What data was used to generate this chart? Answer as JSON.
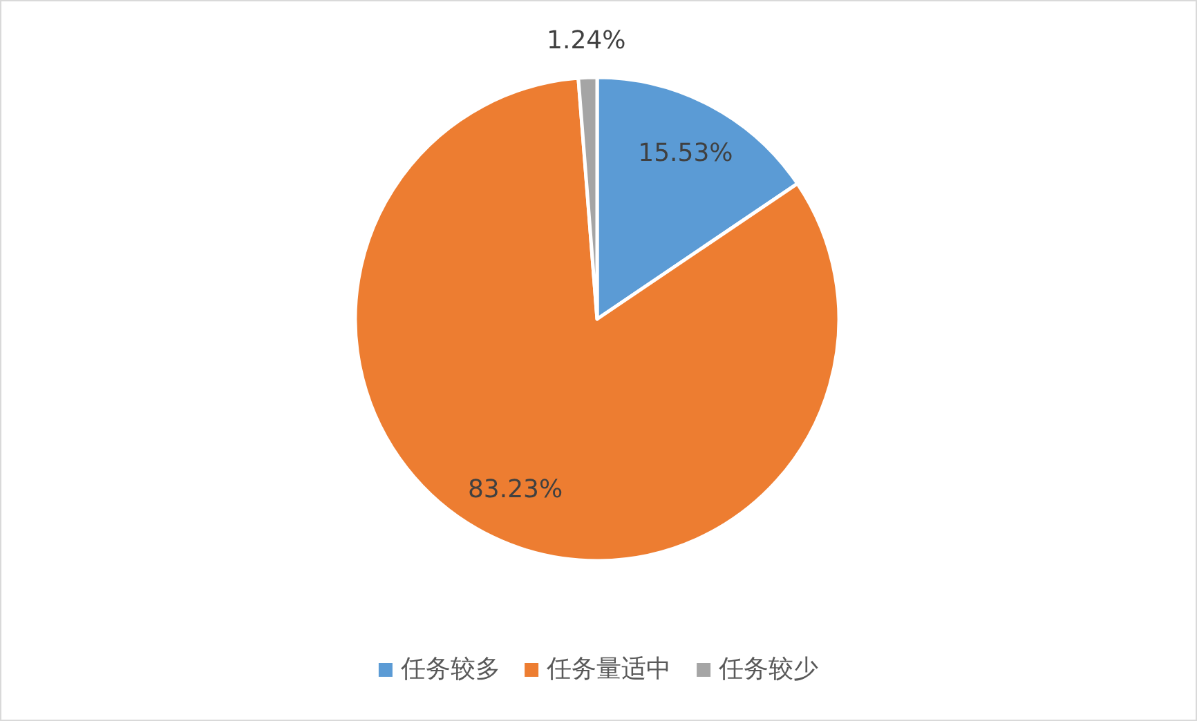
{
  "chart_data": {
    "type": "pie",
    "categories": [
      "任务较多",
      "任务量适中",
      "任务较少"
    ],
    "values": [
      15.53,
      83.23,
      1.24
    ],
    "colors": [
      "#5b9bd5",
      "#ed7d31",
      "#a5a5a5"
    ],
    "value_labels": [
      "15.53%",
      "83.23%",
      "1.24%"
    ],
    "legend": "bottom"
  }
}
